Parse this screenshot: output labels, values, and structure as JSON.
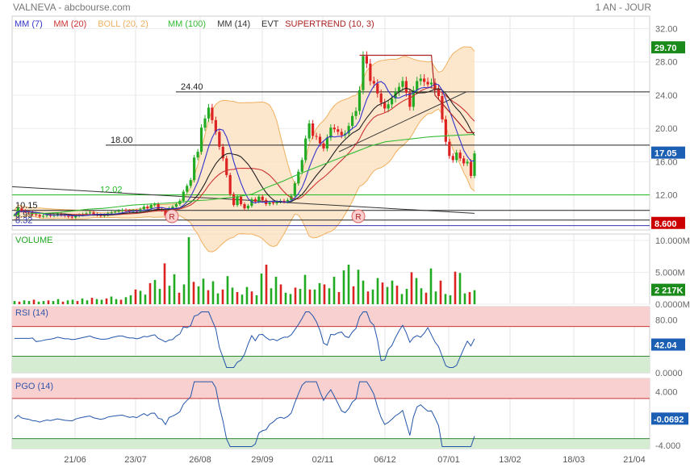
{
  "header": {
    "title": "VALNEVA - abcbourse.com",
    "period": "1 AN - JOUR"
  },
  "legend": [
    {
      "label": "MM (7)",
      "color": "#3333cc"
    },
    {
      "label": "MM (20)",
      "color": "#cc3333"
    },
    {
      "label": "BOLL (20, 2)",
      "color": "#f0b060"
    },
    {
      "label": "MM (100)",
      "color": "#33bb33"
    },
    {
      "label": "MM (14)",
      "color": "#333333"
    },
    {
      "label": "EVT",
      "color": "#333333"
    },
    {
      "label": "SUPERTREND (10, 3)",
      "color": "#aa2222"
    }
  ],
  "colors": {
    "up": "#22aa22",
    "down": "#dd2222",
    "boll_fill": "#fbe3c4",
    "boll_line": "#f0b060",
    "rsi_band_top": "#f8d0d0",
    "rsi_band_bottom": "#d6ecd2",
    "last_price": "#1a5fb4",
    "ma100_badge": "#1a8a1a",
    "support_badge": "#cc0000"
  },
  "chart_data": [
    {
      "type": "candlestick",
      "name": "price",
      "y_ticks": [
        "32.00",
        "28.00",
        "24.00",
        "20.00",
        "16.00",
        "12.00"
      ],
      "ylim": [
        7.8,
        33.5
      ],
      "x_labels": [
        "21/06",
        "23/07",
        "26/08",
        "29/09",
        "02/11",
        "06/12",
        "07/01",
        "13/02",
        "18/03",
        "21/04"
      ],
      "levels": [
        {
          "label": "24.40",
          "value": 24.4
        },
        {
          "label": "18.00",
          "value": 18.0
        },
        {
          "label": "12.02",
          "value": 12.02
        },
        {
          "label": "10.15",
          "value": 10.15
        },
        {
          "label": "8.99",
          "value": 8.99
        },
        {
          "label": "8.32",
          "value": 8.32
        }
      ],
      "badges": [
        {
          "label": "29.70",
          "value": 29.7
        },
        {
          "label": "17.05",
          "value": 17.05
        },
        {
          "label": "8.600",
          "value": 8.6
        }
      ],
      "markers": [
        "R",
        "R"
      ],
      "close_approx": [
        9.6,
        10.4,
        10.1,
        10.0,
        9.9,
        9.7,
        9.6,
        9.4,
        9.5,
        9.6,
        9.5,
        9.6,
        9.7,
        9.6,
        9.5,
        9.4,
        9.3,
        9.5,
        9.6,
        9.7,
        9.8,
        9.9,
        9.7,
        9.6,
        9.5,
        9.6,
        9.8,
        9.9,
        10.0,
        10.1,
        10.2,
        10.1,
        10.0,
        10.1,
        10.0,
        10.3,
        10.6,
        10.4,
        10.8,
        10.9,
        10.3,
        10.2,
        9.5,
        10.4,
        10.6,
        10.9,
        11.3,
        12.4,
        13.1,
        13.8,
        16.5,
        17.2,
        20.1,
        21.2,
        22.5,
        21.0,
        19.6,
        17.8,
        16.4,
        14.4,
        12.1,
        10.8,
        11.8,
        10.9,
        10.4,
        10.7,
        11.5,
        11.2,
        11.8,
        11.4,
        10.9,
        11.1,
        11.0,
        11.2,
        11.3,
        11.2,
        11.4,
        11.9,
        13.4,
        14.8,
        16.2,
        18.8,
        20.6,
        19.1,
        19.0,
        18.2,
        17.6,
        18.9,
        20.1,
        19.9,
        19.6,
        19.2,
        19.4,
        20.3,
        21.5,
        22.1,
        24.6,
        28.7,
        27.8,
        25.7,
        25.4,
        24.2,
        23.1,
        22.4,
        22.9,
        23.6,
        24.4,
        25.0,
        25.7,
        24.3,
        22.6,
        24.6,
        25.7,
        26.0,
        25.6,
        25.3,
        25.5,
        24.8,
        23.9,
        21.1,
        18.4,
        16.7,
        16.2,
        17.1,
        16.4,
        15.8,
        16.0,
        14.3,
        17.0
      ],
      "ma100_approx": [
        null,
        9.8,
        9.8,
        9.9,
        10.1,
        10.3,
        10.4,
        10.6,
        10.8,
        10.9,
        11.0,
        11.1,
        11.3,
        11.4,
        11.6,
        11.8,
        12.1,
        12.9,
        13.6,
        14.4,
        15.1,
        15.8,
        16.5,
        17.2,
        17.9,
        18.4,
        18.6,
        18.8,
        19.0,
        19.1,
        19.2,
        19.3
      ]
    },
    {
      "type": "bar",
      "name": "VOLUME",
      "y_ticks": [
        "10.000M",
        "5.000M",
        "0.0000M"
      ],
      "badge": "2 217K",
      "values_approx": [
        0.5,
        0.4,
        0.6,
        0.5,
        0.7,
        0.4,
        0.5,
        0.6,
        0.5,
        0.8,
        0.4,
        0.6,
        0.7,
        0.5,
        0.9,
        0.6,
        1.0,
        0.8,
        0.7,
        0.9,
        1.2,
        0.8,
        0.7,
        1.1,
        1.4,
        2.3,
        2.1,
        1.5,
        3.3,
        3.8,
        2.4,
        6.4,
        2.9,
        4.7,
        1.8,
        3.1,
        10.5,
        3.5,
        2.8,
        4.0,
        2.2,
        3.6,
        1.7,
        2.3,
        4.4,
        2.6,
        1.9,
        1.5,
        2.7,
        2.0,
        1.4,
        4.8,
        6.2,
        2.5,
        4.3,
        3.1,
        1.8,
        1.6,
        2.6,
        2.4,
        4.6,
        2.3,
        2.3,
        3.3,
        3.1,
        2.5,
        4.3,
        1.9,
        5.3,
        6.2,
        2.8,
        5.4,
        3.7,
        2.0,
        2.3,
        4.1,
        3.4,
        2.7,
        3.7,
        2.9,
        1.6,
        2.4,
        5.0,
        4.1,
        2.5,
        1.8,
        5.6,
        2.0,
        3.7,
        1.6,
        1.4,
        5.1,
        4.9,
        1.7,
        1.9,
        2.2
      ]
    },
    {
      "type": "line",
      "name": "RSI (14)",
      "y_ticks": [
        "80.00",
        "42.04",
        "0.0000"
      ],
      "ylim": [
        0,
        100
      ],
      "last": 42.04
    },
    {
      "type": "line",
      "name": "PGO (14)",
      "y_ticks": [
        "4.000",
        "-0.0692",
        "-4.000"
      ],
      "ylim": [
        -4.5,
        6
      ],
      "last": -0.0692
    }
  ]
}
